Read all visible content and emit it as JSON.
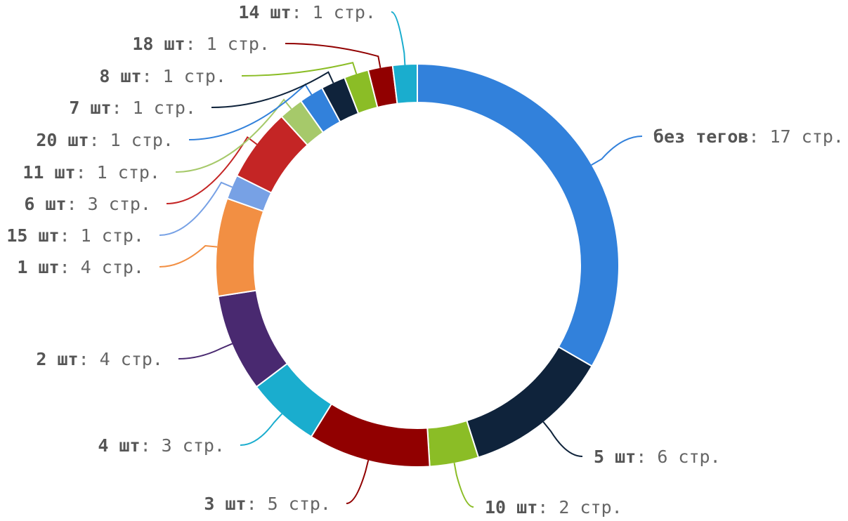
{
  "chart_data": {
    "type": "donut",
    "title": "",
    "legend": "none",
    "value_suffix": " стр.",
    "slices": [
      {
        "label": "без тегов",
        "value": 17,
        "color": "#3281DB"
      },
      {
        "label": "5 шт",
        "value": 6,
        "color": "#0F233B"
      },
      {
        "label": "10 шт",
        "value": 2,
        "color": "#8BBD26"
      },
      {
        "label": "3 шт",
        "value": 5,
        "color": "#910000"
      },
      {
        "label": "4 шт",
        "value": 3,
        "color": "#1AADCE"
      },
      {
        "label": "2 шт",
        "value": 4,
        "color": "#492970"
      },
      {
        "label": "1 шт",
        "value": 4,
        "color": "#F28F43"
      },
      {
        "label": "15 шт",
        "value": 1,
        "color": "#77A1E5"
      },
      {
        "label": "6 шт",
        "value": 3,
        "color": "#C42525"
      },
      {
        "label": "11 шт",
        "value": 1,
        "color": "#A6C96A"
      },
      {
        "label": "20 шт",
        "value": 1,
        "color": "#3281DB"
      },
      {
        "label": "7 шт",
        "value": 1,
        "color": "#0F233B"
      },
      {
        "label": "8 шт",
        "value": 1,
        "color": "#8BBD26"
      },
      {
        "label": "18 шт",
        "value": 1,
        "color": "#910000"
      },
      {
        "label": "14 шт",
        "value": 1,
        "color": "#1AADCE"
      }
    ]
  }
}
